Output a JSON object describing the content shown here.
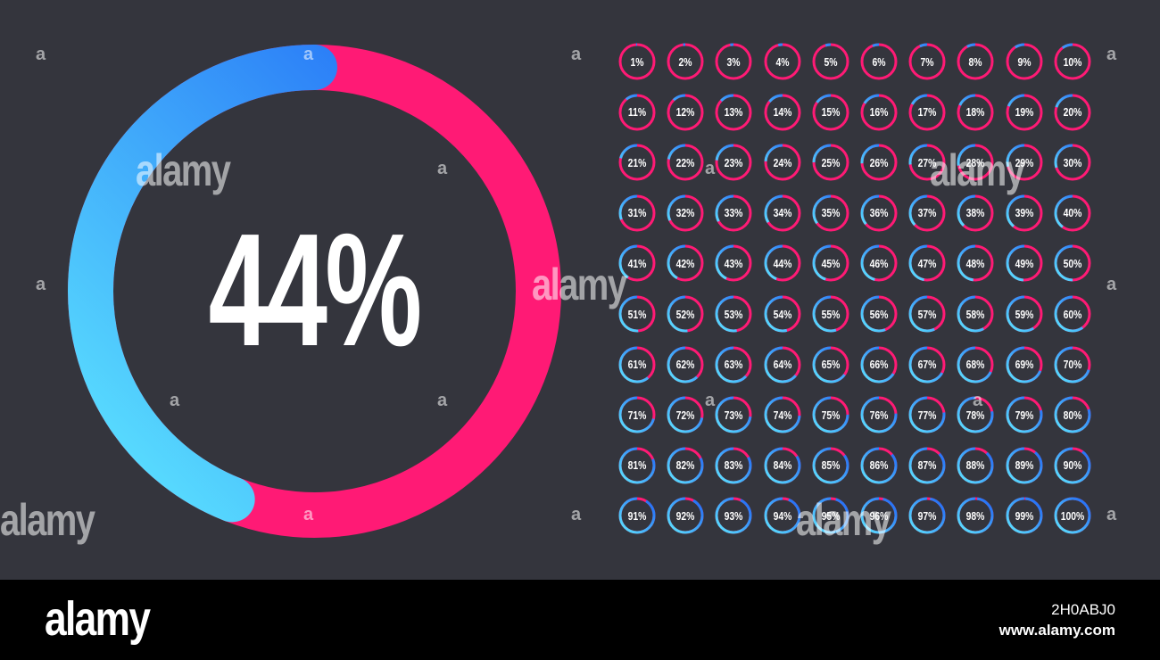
{
  "main_indicator": {
    "value": 44,
    "label": "44%"
  },
  "percent_grid": {
    "labels": [
      "1%",
      "2%",
      "3%",
      "4%",
      "5%",
      "6%",
      "7%",
      "8%",
      "9%",
      "10%",
      "11%",
      "12%",
      "13%",
      "14%",
      "15%",
      "16%",
      "17%",
      "18%",
      "19%",
      "20%",
      "21%",
      "22%",
      "23%",
      "24%",
      "25%",
      "26%",
      "27%",
      "28%",
      "29%",
      "30%",
      "31%",
      "32%",
      "33%",
      "34%",
      "35%",
      "36%",
      "37%",
      "38%",
      "39%",
      "40%",
      "41%",
      "42%",
      "43%",
      "44%",
      "45%",
      "46%",
      "47%",
      "48%",
      "49%",
      "50%",
      "51%",
      "52%",
      "53%",
      "54%",
      "55%",
      "56%",
      "57%",
      "58%",
      "59%",
      "60%",
      "61%",
      "62%",
      "63%",
      "64%",
      "65%",
      "66%",
      "67%",
      "68%",
      "69%",
      "70%",
      "71%",
      "72%",
      "73%",
      "74%",
      "75%",
      "76%",
      "77%",
      "78%",
      "79%",
      "80%",
      "81%",
      "82%",
      "83%",
      "84%",
      "85%",
      "86%",
      "87%",
      "88%",
      "89%",
      "90%",
      "91%",
      "92%",
      "93%",
      "94%",
      "95%",
      "96%",
      "97%",
      "98%",
      "99%",
      "100%"
    ]
  },
  "colors": {
    "background": "#34353d",
    "track": "#ff1a75",
    "progress_start": "#5ee8ff",
    "progress_end": "#1e63f5",
    "text": "#ffffff",
    "footer": "#000000"
  },
  "watermark": {
    "word": "alamy",
    "mark": "a"
  },
  "footer": {
    "logo": "alamy",
    "image_id": "2H0ABJ0",
    "url": "www.alamy.com"
  }
}
